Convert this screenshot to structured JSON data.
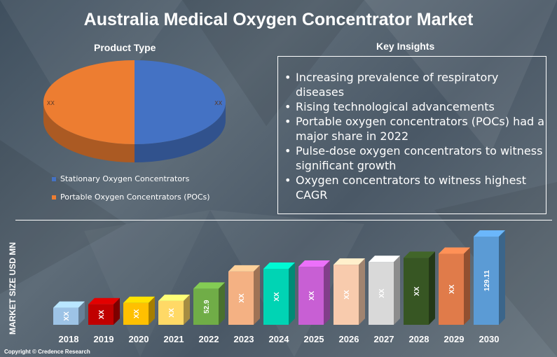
{
  "title": "Australia Medical Oxygen Concentrator Market",
  "product_type_heading": "Product Type",
  "insights_heading": "Key Insights",
  "insights": [
    "Increasing prevalence of respiratory diseases",
    "Rising technological advancements",
    "Portable oxygen concentrators (POCs) had a major share in 2022",
    "Pulse-dose oxygen concentrators to witness significant growth",
    "Oxygen concentrators to witness highest CAGR"
  ],
  "copyright": "Copyright © Credence Research",
  "colors": {
    "stationary": "#4472c4",
    "portable": "#ed7d31"
  },
  "chart_data": [
    {
      "type": "pie",
      "categories": [
        "Stationary Oxygen Concentrators",
        "Portable Oxygen Concentrators (POCs)"
      ],
      "values": [
        "XX",
        "XX"
      ],
      "shares": [
        0.5,
        0.5
      ],
      "legend": "bottom-left"
    },
    {
      "type": "bar",
      "ylabel": "MARKET SIZE USD MN",
      "categories": [
        "2018",
        "2019",
        "2020",
        "2021",
        "2022",
        "2023",
        "2024",
        "2025",
        "2026",
        "2027",
        "2028",
        "2029",
        "2030"
      ],
      "labels": [
        "XX",
        "XX",
        "XX",
        "XX",
        "52.9",
        "XX",
        "XX",
        "XX",
        "XX",
        "XX",
        "XX",
        "XX",
        "129.11"
      ],
      "values": [
        25,
        30,
        32,
        35,
        52.9,
        78,
        82,
        85,
        88,
        92,
        98,
        104,
        129.11
      ],
      "colors": [
        "#9dc3e6",
        "#c00000",
        "#ffc000",
        "#ffd966",
        "#70ad47",
        "#f4b183",
        "#00d4b4",
        "#c85fd4",
        "#f8cbad",
        "#d9d9d9",
        "#375623",
        "#e07b4a",
        "#5b9bd5"
      ]
    }
  ]
}
